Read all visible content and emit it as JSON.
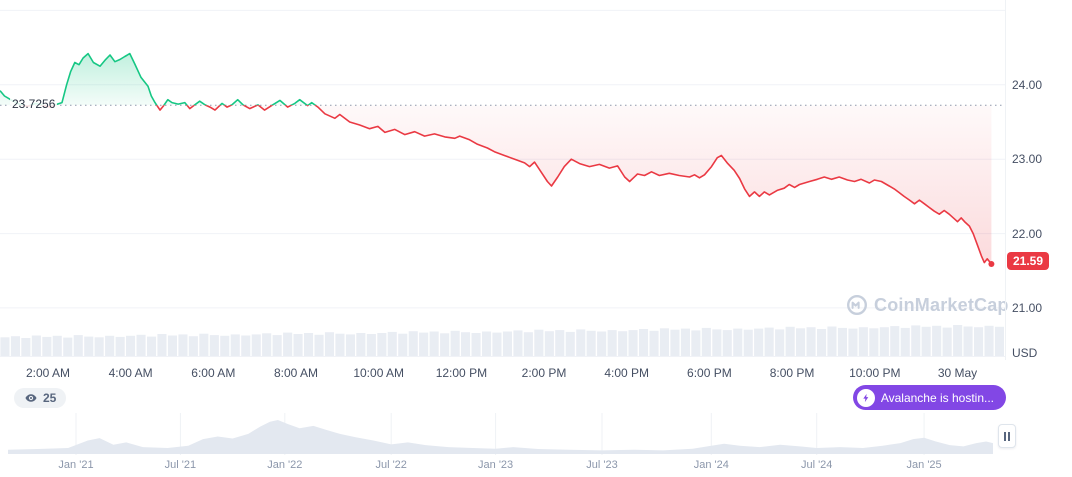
{
  "colors": {
    "green": "#16c784",
    "red": "#ea3943",
    "purple": "#8247e5",
    "volume": "#e9edf3",
    "grid": "#f0f2f7",
    "baseline_dots": "#8f99ad",
    "mini_fill": "#e3e8f0",
    "watermark": "#c7cfdc"
  },
  "watermark": {
    "text": "CoinMarketCap"
  },
  "badges": {
    "watch_count": "25",
    "announcement_text": "Avalanche is hostin..."
  },
  "chart_data": [
    {
      "type": "line",
      "title": "Intraday price (baseline chart)",
      "currency": "USD",
      "baseline": 23.7256,
      "baseline_label": "23.7256",
      "last_price": 21.59,
      "last_price_label": "21.59",
      "x_range": [
        0.84,
        25.15
      ],
      "y_range": [
        20.3,
        25.14
      ],
      "y_ticks": [
        {
          "value": 25.0,
          "label": ""
        },
        {
          "value": 24.0,
          "label": "24.00"
        },
        {
          "value": 23.0,
          "label": "23.00"
        },
        {
          "value": 22.0,
          "label": "22.00"
        },
        {
          "value": 21.0,
          "label": "21.00"
        }
      ],
      "x_ticks": [
        {
          "t": 2,
          "label": "2:00 AM"
        },
        {
          "t": 4,
          "label": "4:00 AM"
        },
        {
          "t": 6,
          "label": "6:00 AM"
        },
        {
          "t": 8,
          "label": "8:00 AM"
        },
        {
          "t": 10,
          "label": "10:00 AM"
        },
        {
          "t": 12,
          "label": "12:00 PM"
        },
        {
          "t": 14,
          "label": "2:00 PM"
        },
        {
          "t": 16,
          "label": "4:00 PM"
        },
        {
          "t": 18,
          "label": "6:00 PM"
        },
        {
          "t": 20,
          "label": "8:00 PM"
        },
        {
          "t": 22,
          "label": "10:00 PM"
        },
        {
          "t": 24,
          "label": "30 May"
        }
      ],
      "series": [
        [
          0.84,
          23.92
        ],
        [
          0.95,
          23.85
        ],
        [
          1.1,
          23.8
        ],
        [
          1.3,
          23.74
        ],
        [
          1.5,
          23.71
        ],
        [
          1.7,
          23.75
        ],
        [
          1.9,
          23.72
        ],
        [
          2.05,
          23.7
        ],
        [
          2.17,
          23.73
        ],
        [
          2.34,
          23.76
        ],
        [
          2.45,
          24.0
        ],
        [
          2.55,
          24.18
        ],
        [
          2.65,
          24.3
        ],
        [
          2.75,
          24.27
        ],
        [
          2.85,
          24.36
        ],
        [
          2.97,
          24.42
        ],
        [
          3.1,
          24.3
        ],
        [
          3.26,
          24.25
        ],
        [
          3.38,
          24.33
        ],
        [
          3.5,
          24.4
        ],
        [
          3.62,
          24.31
        ],
        [
          3.74,
          24.34
        ],
        [
          3.86,
          24.38
        ],
        [
          3.98,
          24.42
        ],
        [
          4.1,
          24.28
        ],
        [
          4.25,
          24.1
        ],
        [
          4.42,
          23.98
        ],
        [
          4.5,
          23.85
        ],
        [
          4.59,
          23.76
        ],
        [
          4.71,
          23.66
        ],
        [
          4.8,
          23.72
        ],
        [
          4.9,
          23.8
        ],
        [
          5.0,
          23.76
        ],
        [
          5.15,
          23.74
        ],
        [
          5.31,
          23.76
        ],
        [
          5.43,
          23.68
        ],
        [
          5.55,
          23.73
        ],
        [
          5.67,
          23.78
        ],
        [
          5.8,
          23.73
        ],
        [
          5.92,
          23.7
        ],
        [
          6.04,
          23.66
        ],
        [
          6.21,
          23.75
        ],
        [
          6.33,
          23.7
        ],
        [
          6.45,
          23.73
        ],
        [
          6.59,
          23.8
        ],
        [
          6.72,
          23.73
        ],
        [
          6.88,
          23.68
        ],
        [
          7.08,
          23.73
        ],
        [
          7.24,
          23.66
        ],
        [
          7.41,
          23.72
        ],
        [
          7.61,
          23.79
        ],
        [
          7.8,
          23.7
        ],
        [
          7.97,
          23.75
        ],
        [
          8.09,
          23.8
        ],
        [
          8.28,
          23.72
        ],
        [
          8.38,
          23.76
        ],
        [
          8.53,
          23.7
        ],
        [
          8.7,
          23.61
        ],
        [
          8.94,
          23.55
        ],
        [
          9.06,
          23.6
        ],
        [
          9.3,
          23.5
        ],
        [
          9.54,
          23.46
        ],
        [
          9.78,
          23.41
        ],
        [
          9.98,
          23.44
        ],
        [
          10.15,
          23.36
        ],
        [
          10.39,
          23.4
        ],
        [
          10.63,
          23.33
        ],
        [
          10.87,
          23.37
        ],
        [
          11.11,
          23.31
        ],
        [
          11.35,
          23.34
        ],
        [
          11.6,
          23.3
        ],
        [
          11.84,
          23.28
        ],
        [
          11.96,
          23.31
        ],
        [
          12.2,
          23.26
        ],
        [
          12.39,
          23.2
        ],
        [
          12.63,
          23.15
        ],
        [
          12.8,
          23.1
        ],
        [
          13.04,
          23.05
        ],
        [
          13.29,
          23.0
        ],
        [
          13.53,
          22.95
        ],
        [
          13.65,
          22.9
        ],
        [
          13.77,
          22.96
        ],
        [
          13.89,
          22.86
        ],
        [
          14.08,
          22.7
        ],
        [
          14.18,
          22.64
        ],
        [
          14.33,
          22.76
        ],
        [
          14.49,
          22.9
        ],
        [
          14.66,
          23.0
        ],
        [
          14.86,
          22.94
        ],
        [
          15.1,
          22.9
        ],
        [
          15.34,
          22.93
        ],
        [
          15.58,
          22.88
        ],
        [
          15.78,
          22.91
        ],
        [
          15.95,
          22.76
        ],
        [
          16.07,
          22.7
        ],
        [
          16.26,
          22.8
        ],
        [
          16.43,
          22.78
        ],
        [
          16.6,
          22.83
        ],
        [
          16.79,
          22.78
        ],
        [
          17.03,
          22.81
        ],
        [
          17.27,
          22.78
        ],
        [
          17.52,
          22.76
        ],
        [
          17.64,
          22.79
        ],
        [
          17.76,
          22.75
        ],
        [
          17.88,
          22.79
        ],
        [
          18.05,
          22.9
        ],
        [
          18.19,
          23.02
        ],
        [
          18.29,
          23.05
        ],
        [
          18.43,
          22.95
        ],
        [
          18.6,
          22.85
        ],
        [
          18.73,
          22.74
        ],
        [
          18.85,
          22.6
        ],
        [
          18.97,
          22.5
        ],
        [
          19.09,
          22.56
        ],
        [
          19.21,
          22.5
        ],
        [
          19.33,
          22.56
        ],
        [
          19.45,
          22.52
        ],
        [
          19.64,
          22.58
        ],
        [
          19.81,
          22.61
        ],
        [
          19.93,
          22.66
        ],
        [
          20.06,
          22.62
        ],
        [
          20.18,
          22.66
        ],
        [
          20.42,
          22.7
        ],
        [
          20.61,
          22.73
        ],
        [
          20.78,
          22.76
        ],
        [
          20.95,
          22.73
        ],
        [
          21.14,
          22.76
        ],
        [
          21.34,
          22.72
        ],
        [
          21.51,
          22.7
        ],
        [
          21.67,
          22.73
        ],
        [
          21.87,
          22.68
        ],
        [
          21.99,
          22.72
        ],
        [
          22.16,
          22.7
        ],
        [
          22.35,
          22.64
        ],
        [
          22.47,
          22.6
        ],
        [
          22.59,
          22.55
        ],
        [
          22.71,
          22.5
        ],
        [
          22.84,
          22.45
        ],
        [
          22.96,
          22.4
        ],
        [
          23.08,
          22.45
        ],
        [
          23.2,
          22.4
        ],
        [
          23.32,
          22.35
        ],
        [
          23.44,
          22.3
        ],
        [
          23.56,
          22.26
        ],
        [
          23.68,
          22.31
        ],
        [
          23.8,
          22.26
        ],
        [
          23.92,
          22.2
        ],
        [
          24.0,
          22.16
        ],
        [
          24.09,
          22.21
        ],
        [
          24.19,
          22.15
        ],
        [
          24.29,
          22.1
        ],
        [
          24.38,
          22.0
        ],
        [
          24.48,
          21.85
        ],
        [
          24.58,
          21.7
        ],
        [
          24.65,
          21.61
        ],
        [
          24.72,
          21.66
        ],
        [
          24.82,
          21.59
        ]
      ],
      "volume": [
        0.52,
        0.55,
        0.5,
        0.57,
        0.53,
        0.56,
        0.51,
        0.58,
        0.54,
        0.52,
        0.56,
        0.53,
        0.56,
        0.59,
        0.54,
        0.61,
        0.57,
        0.6,
        0.55,
        0.62,
        0.58,
        0.56,
        0.6,
        0.57,
        0.6,
        0.63,
        0.58,
        0.65,
        0.61,
        0.64,
        0.59,
        0.66,
        0.62,
        0.6,
        0.64,
        0.61,
        0.64,
        0.67,
        0.62,
        0.69,
        0.65,
        0.68,
        0.63,
        0.7,
        0.66,
        0.64,
        0.68,
        0.65,
        0.68,
        0.71,
        0.66,
        0.73,
        0.69,
        0.72,
        0.67,
        0.74,
        0.7,
        0.68,
        0.72,
        0.69,
        0.72,
        0.75,
        0.7,
        0.77,
        0.73,
        0.76,
        0.71,
        0.78,
        0.74,
        0.72,
        0.76,
        0.73,
        0.76,
        0.79,
        0.74,
        0.81,
        0.77,
        0.8,
        0.75,
        0.82,
        0.78,
        0.76,
        0.8,
        0.77,
        0.8,
        0.83,
        0.78,
        0.85,
        0.81,
        0.84,
        0.79,
        0.86,
        0.82,
        0.8,
        0.84,
        0.81
      ]
    },
    {
      "type": "area",
      "title": "Multi-year range selector",
      "x_ticks": [
        {
          "f": 0.069,
          "label": "Jan '21"
        },
        {
          "f": 0.175,
          "label": "Jul '21"
        },
        {
          "f": 0.281,
          "label": "Jan '22"
        },
        {
          "f": 0.389,
          "label": "Jul '22"
        },
        {
          "f": 0.495,
          "label": "Jan '23"
        },
        {
          "f": 0.603,
          "label": "Jul '23"
        },
        {
          "f": 0.714,
          "label": "Jan '24"
        },
        {
          "f": 0.821,
          "label": "Jul '24"
        },
        {
          "f": 0.93,
          "label": "Jan '25"
        }
      ],
      "points": [
        [
          0.0,
          0.1
        ],
        [
          0.03,
          0.12
        ],
        [
          0.061,
          0.15
        ],
        [
          0.081,
          0.38
        ],
        [
          0.093,
          0.45
        ],
        [
          0.107,
          0.25
        ],
        [
          0.12,
          0.32
        ],
        [
          0.137,
          0.18
        ],
        [
          0.162,
          0.15
        ],
        [
          0.183,
          0.22
        ],
        [
          0.198,
          0.42
        ],
        [
          0.213,
          0.5
        ],
        [
          0.228,
          0.44
        ],
        [
          0.244,
          0.58
        ],
        [
          0.256,
          0.8
        ],
        [
          0.266,
          0.95
        ],
        [
          0.274,
          1.0
        ],
        [
          0.284,
          0.88
        ],
        [
          0.296,
          0.75
        ],
        [
          0.31,
          0.82
        ],
        [
          0.323,
          0.7
        ],
        [
          0.337,
          0.58
        ],
        [
          0.353,
          0.48
        ],
        [
          0.371,
          0.38
        ],
        [
          0.389,
          0.26
        ],
        [
          0.406,
          0.32
        ],
        [
          0.424,
          0.24
        ],
        [
          0.447,
          0.18
        ],
        [
          0.472,
          0.15
        ],
        [
          0.495,
          0.13
        ],
        [
          0.513,
          0.18
        ],
        [
          0.538,
          0.12
        ],
        [
          0.569,
          0.1
        ],
        [
          0.603,
          0.08
        ],
        [
          0.635,
          0.1
        ],
        [
          0.665,
          0.08
        ],
        [
          0.695,
          0.13
        ],
        [
          0.714,
          0.22
        ],
        [
          0.727,
          0.28
        ],
        [
          0.743,
          0.22
        ],
        [
          0.763,
          0.18
        ],
        [
          0.784,
          0.25
        ],
        [
          0.804,
          0.2
        ],
        [
          0.821,
          0.15
        ],
        [
          0.845,
          0.18
        ],
        [
          0.868,
          0.15
        ],
        [
          0.888,
          0.22
        ],
        [
          0.906,
          0.3
        ],
        [
          0.919,
          0.42
        ],
        [
          0.93,
          0.46
        ],
        [
          0.942,
          0.35
        ],
        [
          0.956,
          0.24
        ],
        [
          0.97,
          0.2
        ],
        [
          0.983,
          0.3
        ],
        [
          0.993,
          0.35
        ],
        [
          1.0,
          0.3
        ]
      ]
    }
  ]
}
